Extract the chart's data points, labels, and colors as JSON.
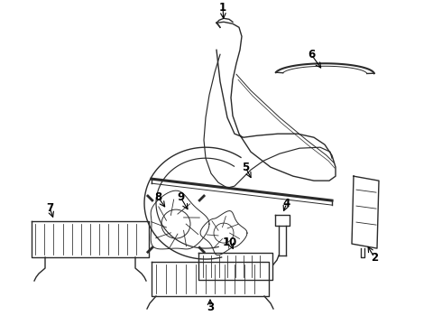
{
  "bg_color": "#ffffff",
  "line_color": "#2a2a2a",
  "lw": 1.0,
  "fig_width": 4.9,
  "fig_height": 3.6,
  "dpi": 100,
  "xlim": [
    0,
    490
  ],
  "ylim": [
    0,
    360
  ]
}
